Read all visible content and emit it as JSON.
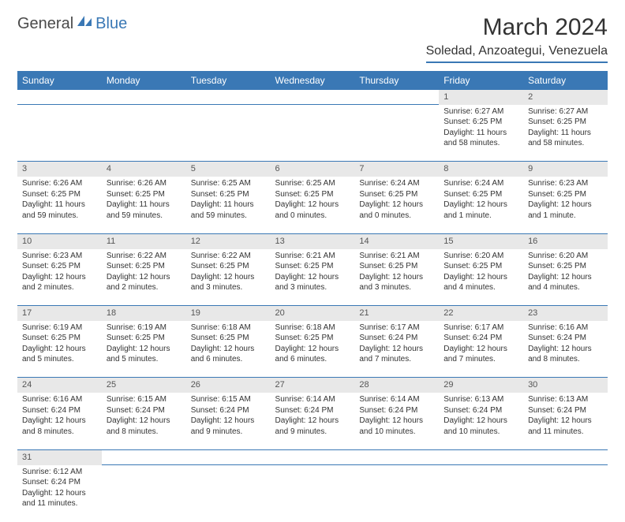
{
  "logo": {
    "general": "General",
    "blue": "Blue"
  },
  "title": "March 2024",
  "location": "Soledad, Anzoategui, Venezuela",
  "colors": {
    "accent": "#3a78b5",
    "header_bg": "#3a78b5",
    "daynum_bg": "#e8e8e8"
  },
  "dayHeaders": [
    "Sunday",
    "Monday",
    "Tuesday",
    "Wednesday",
    "Thursday",
    "Friday",
    "Saturday"
  ],
  "weeks": [
    [
      null,
      null,
      null,
      null,
      null,
      {
        "n": "1",
        "sunrise": "Sunrise: 6:27 AM",
        "sunset": "Sunset: 6:25 PM",
        "daylight": "Daylight: 11 hours and 58 minutes."
      },
      {
        "n": "2",
        "sunrise": "Sunrise: 6:27 AM",
        "sunset": "Sunset: 6:25 PM",
        "daylight": "Daylight: 11 hours and 58 minutes."
      }
    ],
    [
      {
        "n": "3",
        "sunrise": "Sunrise: 6:26 AM",
        "sunset": "Sunset: 6:25 PM",
        "daylight": "Daylight: 11 hours and 59 minutes."
      },
      {
        "n": "4",
        "sunrise": "Sunrise: 6:26 AM",
        "sunset": "Sunset: 6:25 PM",
        "daylight": "Daylight: 11 hours and 59 minutes."
      },
      {
        "n": "5",
        "sunrise": "Sunrise: 6:25 AM",
        "sunset": "Sunset: 6:25 PM",
        "daylight": "Daylight: 11 hours and 59 minutes."
      },
      {
        "n": "6",
        "sunrise": "Sunrise: 6:25 AM",
        "sunset": "Sunset: 6:25 PM",
        "daylight": "Daylight: 12 hours and 0 minutes."
      },
      {
        "n": "7",
        "sunrise": "Sunrise: 6:24 AM",
        "sunset": "Sunset: 6:25 PM",
        "daylight": "Daylight: 12 hours and 0 minutes."
      },
      {
        "n": "8",
        "sunrise": "Sunrise: 6:24 AM",
        "sunset": "Sunset: 6:25 PM",
        "daylight": "Daylight: 12 hours and 1 minute."
      },
      {
        "n": "9",
        "sunrise": "Sunrise: 6:23 AM",
        "sunset": "Sunset: 6:25 PM",
        "daylight": "Daylight: 12 hours and 1 minute."
      }
    ],
    [
      {
        "n": "10",
        "sunrise": "Sunrise: 6:23 AM",
        "sunset": "Sunset: 6:25 PM",
        "daylight": "Daylight: 12 hours and 2 minutes."
      },
      {
        "n": "11",
        "sunrise": "Sunrise: 6:22 AM",
        "sunset": "Sunset: 6:25 PM",
        "daylight": "Daylight: 12 hours and 2 minutes."
      },
      {
        "n": "12",
        "sunrise": "Sunrise: 6:22 AM",
        "sunset": "Sunset: 6:25 PM",
        "daylight": "Daylight: 12 hours and 3 minutes."
      },
      {
        "n": "13",
        "sunrise": "Sunrise: 6:21 AM",
        "sunset": "Sunset: 6:25 PM",
        "daylight": "Daylight: 12 hours and 3 minutes."
      },
      {
        "n": "14",
        "sunrise": "Sunrise: 6:21 AM",
        "sunset": "Sunset: 6:25 PM",
        "daylight": "Daylight: 12 hours and 3 minutes."
      },
      {
        "n": "15",
        "sunrise": "Sunrise: 6:20 AM",
        "sunset": "Sunset: 6:25 PM",
        "daylight": "Daylight: 12 hours and 4 minutes."
      },
      {
        "n": "16",
        "sunrise": "Sunrise: 6:20 AM",
        "sunset": "Sunset: 6:25 PM",
        "daylight": "Daylight: 12 hours and 4 minutes."
      }
    ],
    [
      {
        "n": "17",
        "sunrise": "Sunrise: 6:19 AM",
        "sunset": "Sunset: 6:25 PM",
        "daylight": "Daylight: 12 hours and 5 minutes."
      },
      {
        "n": "18",
        "sunrise": "Sunrise: 6:19 AM",
        "sunset": "Sunset: 6:25 PM",
        "daylight": "Daylight: 12 hours and 5 minutes."
      },
      {
        "n": "19",
        "sunrise": "Sunrise: 6:18 AM",
        "sunset": "Sunset: 6:25 PM",
        "daylight": "Daylight: 12 hours and 6 minutes."
      },
      {
        "n": "20",
        "sunrise": "Sunrise: 6:18 AM",
        "sunset": "Sunset: 6:25 PM",
        "daylight": "Daylight: 12 hours and 6 minutes."
      },
      {
        "n": "21",
        "sunrise": "Sunrise: 6:17 AM",
        "sunset": "Sunset: 6:24 PM",
        "daylight": "Daylight: 12 hours and 7 minutes."
      },
      {
        "n": "22",
        "sunrise": "Sunrise: 6:17 AM",
        "sunset": "Sunset: 6:24 PM",
        "daylight": "Daylight: 12 hours and 7 minutes."
      },
      {
        "n": "23",
        "sunrise": "Sunrise: 6:16 AM",
        "sunset": "Sunset: 6:24 PM",
        "daylight": "Daylight: 12 hours and 8 minutes."
      }
    ],
    [
      {
        "n": "24",
        "sunrise": "Sunrise: 6:16 AM",
        "sunset": "Sunset: 6:24 PM",
        "daylight": "Daylight: 12 hours and 8 minutes."
      },
      {
        "n": "25",
        "sunrise": "Sunrise: 6:15 AM",
        "sunset": "Sunset: 6:24 PM",
        "daylight": "Daylight: 12 hours and 8 minutes."
      },
      {
        "n": "26",
        "sunrise": "Sunrise: 6:15 AM",
        "sunset": "Sunset: 6:24 PM",
        "daylight": "Daylight: 12 hours and 9 minutes."
      },
      {
        "n": "27",
        "sunrise": "Sunrise: 6:14 AM",
        "sunset": "Sunset: 6:24 PM",
        "daylight": "Daylight: 12 hours and 9 minutes."
      },
      {
        "n": "28",
        "sunrise": "Sunrise: 6:14 AM",
        "sunset": "Sunset: 6:24 PM",
        "daylight": "Daylight: 12 hours and 10 minutes."
      },
      {
        "n": "29",
        "sunrise": "Sunrise: 6:13 AM",
        "sunset": "Sunset: 6:24 PM",
        "daylight": "Daylight: 12 hours and 10 minutes."
      },
      {
        "n": "30",
        "sunrise": "Sunrise: 6:13 AM",
        "sunset": "Sunset: 6:24 PM",
        "daylight": "Daylight: 12 hours and 11 minutes."
      }
    ],
    [
      {
        "n": "31",
        "sunrise": "Sunrise: 6:12 AM",
        "sunset": "Sunset: 6:24 PM",
        "daylight": "Daylight: 12 hours and 11 minutes."
      },
      null,
      null,
      null,
      null,
      null,
      null
    ]
  ]
}
